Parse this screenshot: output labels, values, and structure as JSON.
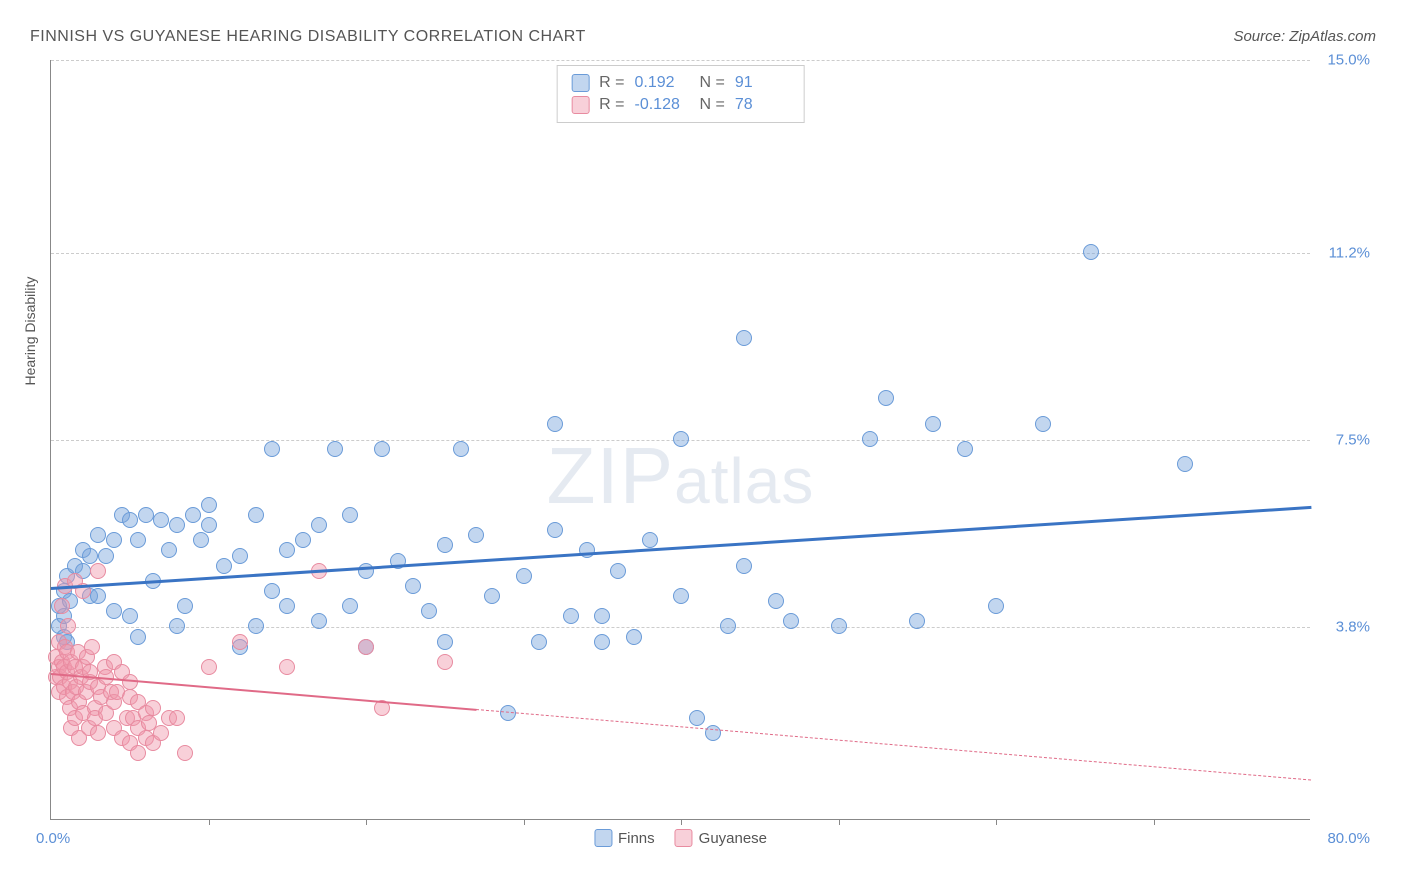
{
  "title": "FINNISH VS GUYANESE HEARING DISABILITY CORRELATION CHART",
  "source": "Source: ZipAtlas.com",
  "watermark_big": "ZIP",
  "watermark_small": "atlas",
  "y_axis_label": "Hearing Disability",
  "chart": {
    "type": "scatter",
    "xlim": [
      0,
      80
    ],
    "ylim": [
      0,
      15
    ],
    "x_min_label": "0.0%",
    "x_max_label": "80.0%",
    "x_ticks": [
      10,
      20,
      30,
      40,
      50,
      60,
      70
    ],
    "y_ticks": [
      {
        "v": 3.8,
        "label": "3.8%"
      },
      {
        "v": 7.5,
        "label": "7.5%"
      },
      {
        "v": 11.2,
        "label": "11.2%"
      },
      {
        "v": 15.0,
        "label": "15.0%"
      }
    ],
    "grid_color": "#cccccc",
    "background_color": "#ffffff",
    "point_radius": 8,
    "series": [
      {
        "name": "Finns",
        "fill": "rgba(120,165,220,0.45)",
        "stroke": "#6a9bd8",
        "r": 0.192,
        "n": 91,
        "trend": {
          "x1": 0,
          "y1": 4.6,
          "x2": 80,
          "y2": 6.2,
          "solid_to": 80,
          "color": "#3a74c4",
          "width": 2.5
        },
        "points": [
          [
            0.5,
            3.8
          ],
          [
            0.5,
            4.2
          ],
          [
            0.8,
            3.6
          ],
          [
            0.8,
            4.0
          ],
          [
            0.8,
            4.5
          ],
          [
            1.0,
            3.5
          ],
          [
            1.0,
            4.8
          ],
          [
            1.2,
            4.3
          ],
          [
            1.5,
            5.0
          ],
          [
            2,
            4.9
          ],
          [
            2,
            5.3
          ],
          [
            2.5,
            5.2
          ],
          [
            2.5,
            4.4
          ],
          [
            3,
            5.6
          ],
          [
            3,
            4.4
          ],
          [
            3.5,
            5.2
          ],
          [
            4,
            4.1
          ],
          [
            4,
            5.5
          ],
          [
            4.5,
            6.0
          ],
          [
            5,
            4.0
          ],
          [
            5,
            5.9
          ],
          [
            5.5,
            3.6
          ],
          [
            5.5,
            5.5
          ],
          [
            6,
            6.0
          ],
          [
            6.5,
            4.7
          ],
          [
            7,
            5.9
          ],
          [
            7.5,
            5.3
          ],
          [
            8,
            5.8
          ],
          [
            8,
            3.8
          ],
          [
            8.5,
            4.2
          ],
          [
            9,
            6.0
          ],
          [
            9.5,
            5.5
          ],
          [
            10,
            5.8
          ],
          [
            10,
            6.2
          ],
          [
            11,
            5.0
          ],
          [
            12,
            3.4
          ],
          [
            12,
            5.2
          ],
          [
            13,
            3.8
          ],
          [
            13,
            6.0
          ],
          [
            14,
            4.5
          ],
          [
            14,
            7.3
          ],
          [
            15,
            5.3
          ],
          [
            15,
            4.2
          ],
          [
            16,
            5.5
          ],
          [
            17,
            3.9
          ],
          [
            17,
            5.8
          ],
          [
            18,
            7.3
          ],
          [
            19,
            6.0
          ],
          [
            19,
            4.2
          ],
          [
            20,
            3.4
          ],
          [
            20,
            4.9
          ],
          [
            21,
            7.3
          ],
          [
            22,
            5.1
          ],
          [
            23,
            4.6
          ],
          [
            24,
            4.1
          ],
          [
            25,
            5.4
          ],
          [
            25,
            3.5
          ],
          [
            26,
            7.3
          ],
          [
            27,
            5.6
          ],
          [
            28,
            4.4
          ],
          [
            29,
            2.1
          ],
          [
            30,
            4.8
          ],
          [
            31,
            3.5
          ],
          [
            32,
            5.7
          ],
          [
            32,
            7.8
          ],
          [
            33,
            4.0
          ],
          [
            34,
            5.3
          ],
          [
            35,
            4.0
          ],
          [
            35,
            3.5
          ],
          [
            36,
            4.9
          ],
          [
            37,
            3.6
          ],
          [
            38,
            5.5
          ],
          [
            40,
            4.4
          ],
          [
            40,
            7.5
          ],
          [
            41,
            2.0
          ],
          [
            42,
            1.7
          ],
          [
            43,
            3.8
          ],
          [
            44,
            5.0
          ],
          [
            44,
            9.5
          ],
          [
            46,
            4.3
          ],
          [
            47,
            3.9
          ],
          [
            50,
            3.8
          ],
          [
            52,
            7.5
          ],
          [
            53,
            8.3
          ],
          [
            55,
            3.9
          ],
          [
            56,
            7.8
          ],
          [
            58,
            7.3
          ],
          [
            60,
            4.2
          ],
          [
            63,
            7.8
          ],
          [
            66,
            11.2
          ],
          [
            72,
            7.0
          ]
        ]
      },
      {
        "name": "Guyanese",
        "fill": "rgba(240,150,170,0.45)",
        "stroke": "#e88ba0",
        "r": -0.128,
        "n": 78,
        "trend": {
          "x1": 0,
          "y1": 2.9,
          "x2": 80,
          "y2": 0.8,
          "solid_to": 27,
          "color": "#e06a87",
          "width": 2
        },
        "points": [
          [
            0.3,
            2.8
          ],
          [
            0.3,
            3.2
          ],
          [
            0.5,
            2.5
          ],
          [
            0.5,
            3.0
          ],
          [
            0.5,
            3.5
          ],
          [
            0.6,
            2.8
          ],
          [
            0.7,
            3.1
          ],
          [
            0.7,
            4.2
          ],
          [
            0.8,
            2.6
          ],
          [
            0.8,
            3.0
          ],
          [
            0.9,
            3.4
          ],
          [
            0.9,
            4.6
          ],
          [
            1.0,
            2.4
          ],
          [
            1.0,
            2.9
          ],
          [
            1.0,
            3.3
          ],
          [
            1.1,
            3.8
          ],
          [
            1.2,
            2.2
          ],
          [
            1.2,
            2.7
          ],
          [
            1.3,
            3.1
          ],
          [
            1.3,
            1.8
          ],
          [
            1.4,
            2.5
          ],
          [
            1.5,
            3.0
          ],
          [
            1.5,
            2.0
          ],
          [
            1.5,
            4.7
          ],
          [
            1.6,
            2.6
          ],
          [
            1.7,
            3.3
          ],
          [
            1.8,
            2.3
          ],
          [
            1.8,
            1.6
          ],
          [
            1.9,
            2.8
          ],
          [
            2.0,
            2.1
          ],
          [
            2.0,
            3.0
          ],
          [
            2.0,
            4.5
          ],
          [
            2.2,
            2.5
          ],
          [
            2.3,
            3.2
          ],
          [
            2.4,
            1.8
          ],
          [
            2.5,
            2.7
          ],
          [
            2.5,
            2.9
          ],
          [
            2.6,
            3.4
          ],
          [
            2.8,
            2.2
          ],
          [
            2.8,
            2.0
          ],
          [
            3.0,
            2.6
          ],
          [
            3.0,
            1.7
          ],
          [
            3.0,
            4.9
          ],
          [
            3.2,
            2.4
          ],
          [
            3.4,
            3.0
          ],
          [
            3.5,
            2.1
          ],
          [
            3.5,
            2.8
          ],
          [
            3.8,
            2.5
          ],
          [
            4.0,
            1.8
          ],
          [
            4.0,
            2.3
          ],
          [
            4.0,
            3.1
          ],
          [
            4.2,
            2.5
          ],
          [
            4.5,
            1.6
          ],
          [
            4.5,
            2.9
          ],
          [
            4.8,
            2.0
          ],
          [
            5.0,
            2.4
          ],
          [
            5.0,
            1.5
          ],
          [
            5.0,
            2.7
          ],
          [
            5.2,
            2.0
          ],
          [
            5.5,
            1.8
          ],
          [
            5.5,
            2.3
          ],
          [
            5.5,
            1.3
          ],
          [
            6.0,
            2.1
          ],
          [
            6.0,
            1.6
          ],
          [
            6.2,
            1.9
          ],
          [
            6.5,
            1.5
          ],
          [
            6.5,
            2.2
          ],
          [
            7.0,
            1.7
          ],
          [
            7.5,
            2.0
          ],
          [
            8.0,
            2.0
          ],
          [
            8.5,
            1.3
          ],
          [
            10,
            3.0
          ],
          [
            12,
            3.5
          ],
          [
            15,
            3.0
          ],
          [
            17,
            4.9
          ],
          [
            20,
            3.4
          ],
          [
            21,
            2.2
          ],
          [
            25,
            3.1
          ]
        ]
      }
    ]
  },
  "legend_top": [
    {
      "r_label": "R =",
      "r_value": "0.192",
      "n_label": "N =",
      "n_value": "91"
    },
    {
      "r_label": "R =",
      "r_value": "-0.128",
      "n_label": "N =",
      "n_value": "78"
    }
  ],
  "legend_bottom": [
    "Finns",
    "Guyanese"
  ]
}
